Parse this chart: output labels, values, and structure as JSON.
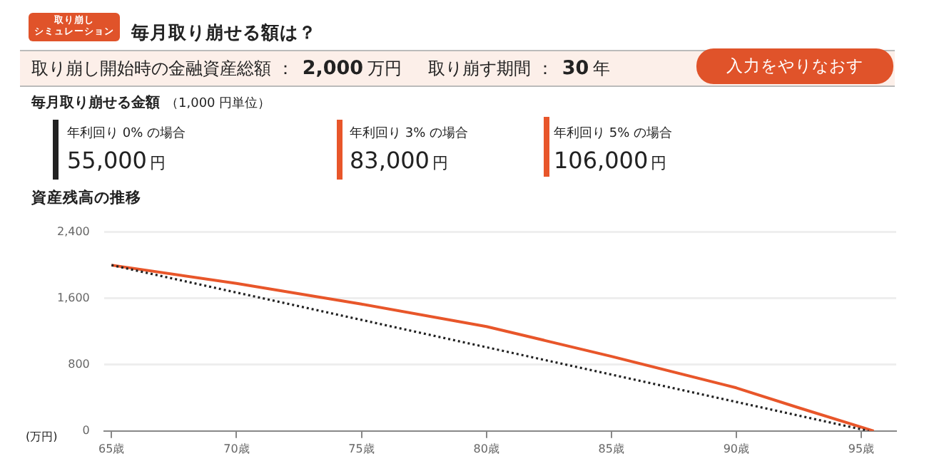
{
  "chart_data": {
    "type": "line",
    "title": "毎月取り崩せる額は？",
    "subtitle": "資産残高の推移",
    "ylabel": "(万円)",
    "annotations": [
      "取り崩し",
      "シミュレーション",
      "取り崩し開始時の金融資産総額 ：",
      "2,000",
      "万円",
      "取り崩す期間 ：",
      "30",
      "年",
      "入力をやりなおす",
      "毎月取り崩せる金額",
      "（1,000 円単位）",
      "年利回り 0% の場合",
      "55,000",
      "円",
      "年利回り 3% の場合",
      "83,000",
      "円",
      "年利回り 5% の場合",
      "106,000",
      "円"
    ],
    "series": [
      {
        "color": "#222222",
        "line_style": "dotted",
        "x": [
          65,
          70,
          75,
          80,
          85,
          90,
          95.3
        ],
        "values": [
          2000,
          1670,
          1340,
          1010,
          680,
          350,
          0
        ]
      },
      {
        "color": "#e8562a",
        "line_style": "solid",
        "x": [
          65,
          70,
          75,
          80,
          85,
          90,
          92.5,
          95.5
        ],
        "values": [
          2000,
          1780,
          1530,
          1260,
          900,
          520,
          280,
          0
        ]
      }
    ],
    "xlim": [
      64.7,
      96.4
    ],
    "xticks": [
      {
        "value": 65,
        "label": "65歳"
      },
      {
        "value": 70,
        "label": "70歳"
      },
      {
        "value": 75,
        "label": "75歳"
      },
      {
        "value": 80,
        "label": "80歳"
      },
      {
        "value": 85,
        "label": "85歳"
      },
      {
        "value": 90,
        "label": "90歳"
      },
      {
        "value": 95,
        "label": "95歳"
      }
    ],
    "ylim": [
      0,
      2400
    ],
    "yticks": [
      0,
      {
        "value": 800,
        "label": "800"
      },
      {
        "value": 1600,
        "label": "1,600"
      },
      {
        "value": 2400,
        "label": "2,400"
      }
    ],
    "grid": "y",
    "legend": false,
    "marker": "none"
  }
}
